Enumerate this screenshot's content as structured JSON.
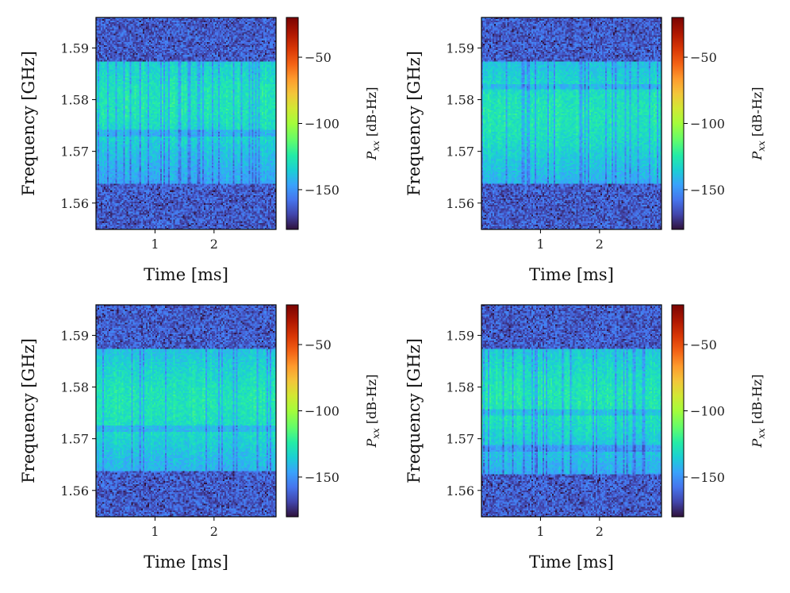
{
  "chart_data": [
    {
      "type": "heatmap",
      "xlabel": "Time [ms]",
      "ylabel": "Frequency [GHz]",
      "xlim": [
        0.0,
        3.05
      ],
      "ylim": [
        1.5549,
        1.5959
      ],
      "x_ticks": [
        1,
        2
      ],
      "y_ticks": [
        1.56,
        1.57,
        1.58,
        1.59
      ],
      "colorbar": {
        "label": "P_xx [dB-Hz]",
        "range": [
          -180,
          -20
        ],
        "ticks": [
          -50,
          -100,
          -150
        ],
        "colormap": "turbo"
      },
      "signal_band_ghz": [
        1.5636,
        1.5875
      ],
      "band_peak_ghz": 1.5795,
      "notches_ghz": [
        1.5735
      ],
      "x_tick_labels": [
        "1",
        "2"
      ],
      "y_tick_labels": [
        "1.56",
        "1.57",
        "1.58",
        "1.59"
      ],
      "cbar_tick_labels": [
        "−50",
        "−100",
        "−150"
      ]
    },
    {
      "type": "heatmap",
      "xlabel": "Time [ms]",
      "ylabel": "Frequency [GHz]",
      "xlim": [
        0.0,
        3.05
      ],
      "ylim": [
        1.5549,
        1.5959
      ],
      "x_ticks": [
        1,
        2
      ],
      "y_ticks": [
        1.56,
        1.57,
        1.58,
        1.59
      ],
      "colorbar": {
        "label": "P_xx [dB-Hz]",
        "range": [
          -180,
          -20
        ],
        "ticks": [
          -50,
          -100,
          -150
        ],
        "colormap": "turbo"
      },
      "signal_band_ghz": [
        1.5636,
        1.5875
      ],
      "band_peak_ghz": 1.577,
      "notches_ghz": [
        1.5825
      ],
      "x_tick_labels": [
        "1",
        "2"
      ],
      "y_tick_labels": [
        "1.56",
        "1.57",
        "1.58",
        "1.59"
      ],
      "cbar_tick_labels": [
        "−50",
        "−100",
        "−150"
      ]
    },
    {
      "type": "heatmap",
      "xlabel": "Time [ms]",
      "ylabel": "Frequency [GHz]",
      "xlim": [
        0.0,
        3.05
      ],
      "ylim": [
        1.5549,
        1.5959
      ],
      "x_ticks": [
        1,
        2
      ],
      "y_ticks": [
        1.56,
        1.57,
        1.58,
        1.59
      ],
      "colorbar": {
        "label": "P_xx [dB-Hz]",
        "range": [
          -180,
          -20
        ],
        "ticks": [
          -50,
          -100,
          -150
        ],
        "colormap": "turbo"
      },
      "signal_band_ghz": [
        1.5636,
        1.5875
      ],
      "band_peak_ghz": 1.577,
      "notches_ghz": [
        1.572
      ],
      "x_tick_labels": [
        "1",
        "2"
      ],
      "y_tick_labels": [
        "1.56",
        "1.57",
        "1.58",
        "1.59"
      ],
      "cbar_tick_labels": [
        "−50",
        "−100",
        "−150"
      ]
    },
    {
      "type": "heatmap",
      "xlabel": "Time [ms]",
      "ylabel": "Frequency [GHz]",
      "xlim": [
        0.0,
        3.05
      ],
      "ylim": [
        1.5549,
        1.5959
      ],
      "x_ticks": [
        1,
        2
      ],
      "y_ticks": [
        1.56,
        1.57,
        1.58,
        1.59
      ],
      "colorbar": {
        "label": "P_xx [dB-Hz]",
        "range": [
          -180,
          -20
        ],
        "ticks": [
          -50,
          -100,
          -150
        ],
        "colormap": "turbo"
      },
      "signal_band_ghz": [
        1.5632,
        1.5875
      ],
      "band_peak_ghz": 1.578,
      "notches_ghz": [
        1.5752,
        1.5682
      ],
      "x_tick_labels": [
        "1",
        "2"
      ],
      "y_tick_labels": [
        "1.56",
        "1.57",
        "1.58",
        "1.59"
      ],
      "cbar_tick_labels": [
        "−50",
        "−100",
        "−150"
      ]
    }
  ]
}
